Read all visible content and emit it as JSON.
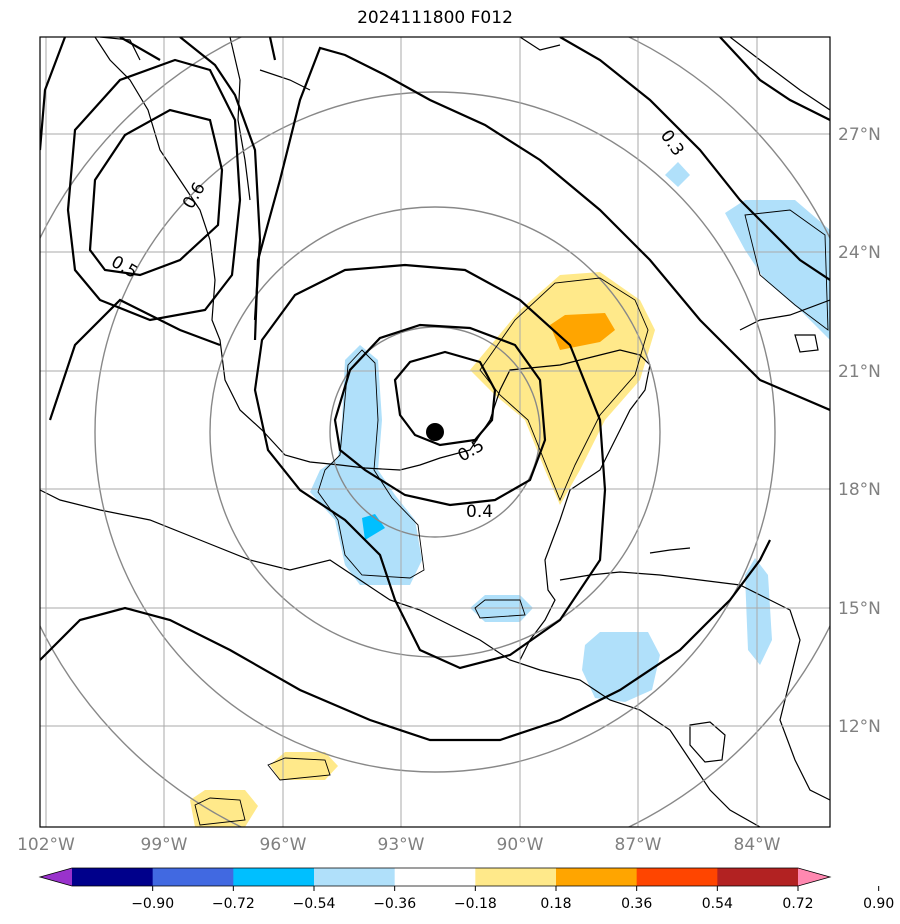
{
  "title": "2024111800 F012",
  "map": {
    "lon_range": [
      -102.2,
      -82.3
    ],
    "lat_range": [
      9.8,
      29.7
    ],
    "lon_ticks": [
      "102°W",
      "99°W",
      "96°W",
      "93°W",
      "90°W",
      "87°W",
      "84°W"
    ],
    "lat_ticks": [
      "27°N",
      "24°N",
      "21°N",
      "18°N",
      "15°N",
      "12°N"
    ],
    "gridlines": true,
    "storm_center": {
      "lon": -92.1,
      "lat": 19.4
    },
    "contour_labels": [
      "0.3",
      "0.6",
      "0.5",
      "0.5",
      "0.4"
    ]
  },
  "colorbar": {
    "levels": [
      "−0.90",
      "−0.72",
      "−0.54",
      "−0.36",
      "−0.18",
      "0.18",
      "0.36",
      "0.54",
      "0.72",
      "0.90"
    ],
    "colors": [
      "#9932cc",
      "#00008b",
      "#4169e1",
      "#00bfff",
      "#b0e0fa",
      "#ffffff",
      "#ffe98a",
      "#ffa500",
      "#ff4500",
      "#b22222",
      "#ff88b0"
    ],
    "extend": "both"
  }
}
